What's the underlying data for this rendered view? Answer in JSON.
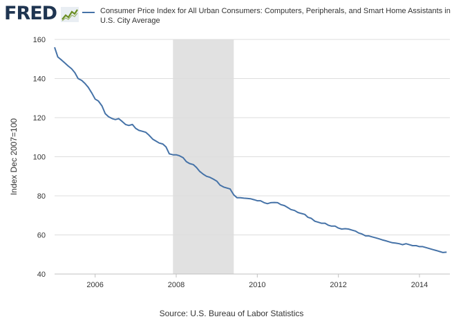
{
  "header": {
    "logo_text": "FRED",
    "logo_icon": "chart-line-icon",
    "legend_label": "Consumer Price Index for All Urban Consumers: Computers, Peripherals, and Smart Home Assistants in U.S. City Average"
  },
  "footer": {
    "source": "Source: U.S. Bureau of Labor Statistics"
  },
  "colors": {
    "series": "#4572a7",
    "recession": "#e1e1e1",
    "grid": "#dddddd",
    "logo": "#1f3551"
  },
  "chart_data": {
    "type": "line",
    "title": "",
    "xlabel": "",
    "ylabel": "Index Dec 2007=100",
    "xlim": [
      2005.0,
      2014.75
    ],
    "ylim": [
      40,
      160
    ],
    "xticks": [
      "2006",
      "2008",
      "2010",
      "2012",
      "2014"
    ],
    "yticks": [
      "40",
      "60",
      "80",
      "100",
      "120",
      "140",
      "160"
    ],
    "grid": "horizontal",
    "legend": "top",
    "recessions": [
      [
        2007.92,
        2009.42
      ]
    ],
    "series": [
      {
        "name": "Consumer Price Index for All Urban Consumers: Computers, Peripherals, and Smart Home Assistants in U.S. City Average",
        "x": [
          2005.0,
          2005.08,
          2005.17,
          2005.25,
          2005.33,
          2005.42,
          2005.5,
          2005.58,
          2005.67,
          2005.75,
          2005.83,
          2005.92,
          2006.0,
          2006.08,
          2006.17,
          2006.25,
          2006.33,
          2006.42,
          2006.5,
          2006.58,
          2006.67,
          2006.75,
          2006.83,
          2006.92,
          2007.0,
          2007.08,
          2007.17,
          2007.25,
          2007.33,
          2007.42,
          2007.5,
          2007.58,
          2007.67,
          2007.75,
          2007.83,
          2007.92,
          2008.0,
          2008.08,
          2008.17,
          2008.25,
          2008.33,
          2008.42,
          2008.5,
          2008.58,
          2008.67,
          2008.75,
          2008.83,
          2008.92,
          2009.0,
          2009.08,
          2009.17,
          2009.25,
          2009.33,
          2009.42,
          2009.5,
          2009.58,
          2009.67,
          2009.75,
          2009.83,
          2009.92,
          2010.0,
          2010.08,
          2010.17,
          2010.25,
          2010.33,
          2010.42,
          2010.5,
          2010.58,
          2010.67,
          2010.75,
          2010.83,
          2010.92,
          2011.0,
          2011.08,
          2011.17,
          2011.25,
          2011.33,
          2011.42,
          2011.5,
          2011.58,
          2011.67,
          2011.75,
          2011.83,
          2011.92,
          2012.0,
          2012.08,
          2012.17,
          2012.25,
          2012.33,
          2012.42,
          2012.5,
          2012.58,
          2012.67,
          2012.75,
          2012.83,
          2012.92,
          2013.0,
          2013.08,
          2013.17,
          2013.25,
          2013.33,
          2013.42,
          2013.5,
          2013.58,
          2013.67,
          2013.75,
          2013.83,
          2013.92,
          2014.0,
          2014.08,
          2014.17,
          2014.25,
          2014.33,
          2014.42,
          2014.5,
          2014.58,
          2014.67
        ],
        "y": [
          156,
          151,
          149.5,
          148,
          146.5,
          145,
          143,
          140,
          139,
          137.5,
          135.5,
          132.5,
          129.5,
          128.5,
          126,
          122,
          120.5,
          119.5,
          119,
          119.5,
          118,
          116.5,
          116,
          116.5,
          114.5,
          113.5,
          113,
          112.5,
          111,
          109,
          108,
          107,
          106.5,
          105,
          101.5,
          101,
          101,
          100.5,
          99.5,
          97.5,
          96.5,
          96,
          94.5,
          92.5,
          91,
          90,
          89.5,
          88.5,
          87.5,
          85.5,
          84.5,
          84,
          83.5,
          80.5,
          79,
          79,
          78.8,
          78.7,
          78.5,
          78,
          77.5,
          77.5,
          76.5,
          76,
          76.5,
          76.6,
          76.5,
          75.5,
          75,
          74,
          73,
          72.5,
          71.5,
          71,
          70.5,
          69,
          68.5,
          67,
          66.5,
          66,
          66,
          65,
          64.5,
          64.5,
          63.5,
          63,
          63.2,
          63,
          62.5,
          62,
          61,
          60.5,
          59.5,
          59.5,
          59,
          58.5,
          58,
          57.5,
          57,
          56.5,
          56,
          55.8,
          55.5,
          55,
          55.5,
          55,
          54.5,
          54.5,
          54,
          54,
          53.5,
          53,
          52.5,
          52,
          51.5,
          51,
          51.2
        ]
      }
    ]
  }
}
